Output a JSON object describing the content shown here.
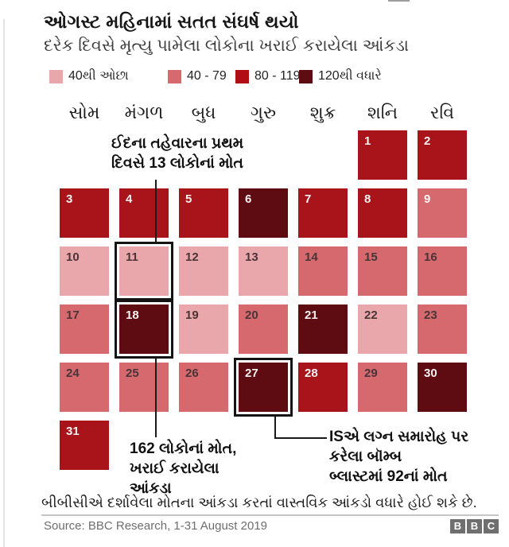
{
  "title": "ઓગસ્ટ મહિનામાં સતત સંઘર્ષ થયો",
  "subtitle": "દરેક દિવસે મૃત્યુ પામેલા લોકોના ખરાઈ કરાયેલા આંકડા",
  "band_colors": {
    "lt40": "#e9a6ab",
    "40-79": "#d5696e",
    "80-119": "#a9141a",
    "120+": "#5e0c11"
  },
  "legend": {
    "items": [
      {
        "label": "40થી ઓછા",
        "band": "lt40",
        "color": "#e9a6ab"
      },
      {
        "label": "40 - 79",
        "band": "40-79",
        "color": "#d5696e"
      },
      {
        "label": "80 - 119",
        "band": "80-119",
        "color": "#b00d14"
      },
      {
        "label": "120થી વધારે",
        "band": "120+",
        "color": "#5e0c11"
      }
    ]
  },
  "weekdays": [
    "સોમ",
    "મંગળ",
    "બુધ",
    "ગુરુ",
    "શુક્ર",
    "શનિ",
    "રવિ"
  ],
  "calendar": {
    "highlighted_days": [
      11,
      18,
      27
    ],
    "days": [
      {
        "day": 1,
        "band": "80-119",
        "num": "light"
      },
      {
        "day": 2,
        "band": "80-119",
        "num": "light"
      },
      {
        "day": 3,
        "band": "80-119",
        "num": "light"
      },
      {
        "day": 4,
        "band": "80-119",
        "num": "light"
      },
      {
        "day": 5,
        "band": "80-119",
        "num": "light"
      },
      {
        "day": 6,
        "band": "120+",
        "num": "light"
      },
      {
        "day": 7,
        "band": "80-119",
        "num": "light"
      },
      {
        "day": 8,
        "band": "80-119",
        "num": "light"
      },
      {
        "day": 9,
        "band": "40-79",
        "num": "light"
      },
      {
        "day": 10,
        "band": "lt40",
        "num": "dark"
      },
      {
        "day": 11,
        "band": "lt40",
        "num": "dark"
      },
      {
        "day": 12,
        "band": "lt40",
        "num": "dark"
      },
      {
        "day": 13,
        "band": "lt40",
        "num": "dark"
      },
      {
        "day": 14,
        "band": "40-79",
        "num": "dark"
      },
      {
        "day": 15,
        "band": "40-79",
        "num": "dark"
      },
      {
        "day": 16,
        "band": "40-79",
        "num": "dark"
      },
      {
        "day": 17,
        "band": "40-79",
        "num": "dark"
      },
      {
        "day": 18,
        "band": "120+",
        "num": "light"
      },
      {
        "day": 19,
        "band": "lt40",
        "num": "dark"
      },
      {
        "day": 20,
        "band": "40-79",
        "num": "dark"
      },
      {
        "day": 21,
        "band": "120+",
        "num": "light"
      },
      {
        "day": 22,
        "band": "lt40",
        "num": "dark"
      },
      {
        "day": 23,
        "band": "40-79",
        "num": "dark"
      },
      {
        "day": 24,
        "band": "40-79",
        "num": "dark"
      },
      {
        "day": 25,
        "band": "40-79",
        "num": "dark"
      },
      {
        "day": 26,
        "band": "40-79",
        "num": "dark"
      },
      {
        "day": 27,
        "band": "120+",
        "num": "light"
      },
      {
        "day": 28,
        "band": "80-119",
        "num": "light"
      },
      {
        "day": 29,
        "band": "40-79",
        "num": "dark"
      },
      {
        "day": 30,
        "band": "120+",
        "num": "light"
      },
      {
        "day": 31,
        "band": "80-119",
        "num": "light"
      }
    ]
  },
  "annotations": [
    {
      "id": "eid",
      "text": "ઈદના તહેવારના પ્રથમ\nદિવસે 13 લોકોનાં મોત",
      "target_day": 11
    },
    {
      "id": "aug18",
      "text": "162 લોકોનાં મોત,\nખરાઈ કરાયેલા\nઆંકડા",
      "target_day": 18
    },
    {
      "id": "aug27",
      "text": "ISએ લગ્ન સમારોહ પર\nકરેલા બૉમ્બ\nબ્લાસ્ટમાં 92નાં મોત",
      "target_day": 27
    }
  ],
  "footer": {
    "note": "બીબીસીએ દર્શાવેલા મોતના આંકડા કરતાં વાસ્તવિક આંકડો વધારે હોઈ શકે છે.",
    "source": "Source: BBC Research, 1-31 August 2019",
    "logo_letters": [
      "B",
      "B",
      "C"
    ]
  },
  "chart_data": {
    "type": "heatmap",
    "subtype": "calendar",
    "title": "ઓગસ્ટ મહિનામાં સતત સંઘર્ષ થયો",
    "subtitle": "દરેક દિવસે મૃત્યુ પામેલા લોકોના ખરાઈ કરાયેલા આંકડા",
    "legend_bands": [
      "40થી ઓછા",
      "40 - 79",
      "80 - 119",
      "120થી વધારે"
    ],
    "weekday_columns": [
      "સોમ",
      "મંગળ",
      "બુધ",
      "ગુરુ",
      "શુક્ર",
      "શનિ",
      "રવિ"
    ],
    "x": "day of month (1-31 August 2019)",
    "categories": [
      1,
      2,
      3,
      4,
      5,
      6,
      7,
      8,
      9,
      10,
      11,
      12,
      13,
      14,
      15,
      16,
      17,
      18,
      19,
      20,
      21,
      22,
      23,
      24,
      25,
      26,
      27,
      28,
      29,
      30,
      31
    ],
    "values": [
      "80-119",
      "80-119",
      "80-119",
      "80-119",
      "80-119",
      "120+",
      "80-119",
      "80-119",
      "40-79",
      "lt40",
      "lt40",
      "lt40",
      "lt40",
      "40-79",
      "40-79",
      "40-79",
      "40-79",
      "120+",
      "lt40",
      "40-79",
      "120+",
      "lt40",
      "40-79",
      "40-79",
      "40-79",
      "40-79",
      "120+",
      "80-119",
      "40-79",
      "120+",
      "80-119"
    ],
    "annotated_points": [
      {
        "day": 11,
        "deaths": 13,
        "note": "ઈદના તહેવારના પ્રથમ દિવસે 13 લોકોનાં મોત"
      },
      {
        "day": 18,
        "deaths": 162,
        "note": "162 લોકોનાં મોત, ખરાઈ કરાયેલા આંકડા"
      },
      {
        "day": 27,
        "deaths": 92,
        "note": "ISએ લગ્ન સમારોહ પર કરેલા બૉમ્બ બ્લાસ્ટમાં 92નાં મોત"
      }
    ]
  }
}
